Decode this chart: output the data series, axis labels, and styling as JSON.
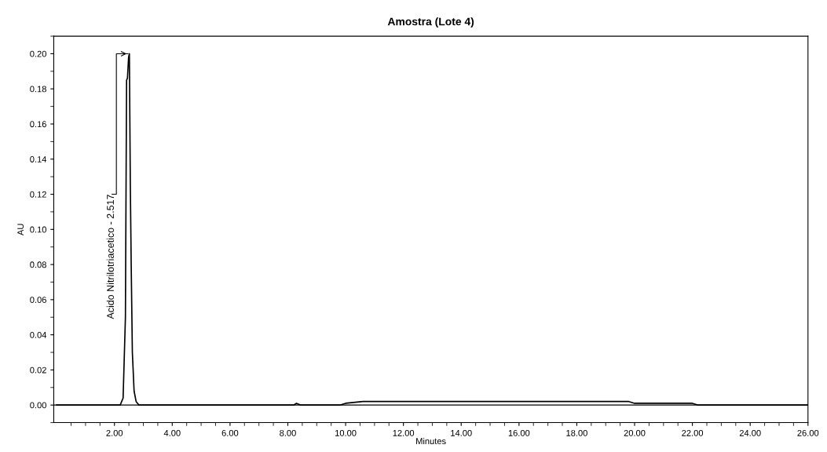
{
  "chart_data": {
    "type": "line",
    "title": "Amostra (Lote 4)",
    "xlabel": "Minutes",
    "ylabel": "AU",
    "x": [
      0,
      2.2,
      2.3,
      2.38,
      2.42,
      2.45,
      2.49,
      2.517,
      2.55,
      2.58,
      2.62,
      2.68,
      2.75,
      2.85,
      8.2,
      8.3,
      8.45,
      9.8,
      10.0,
      10.6,
      19.8,
      20.0,
      22.0,
      22.2,
      26
    ],
    "series": [
      {
        "color": "#000000",
        "values": [
          0,
          0,
          0.004,
          0.05,
          0.185,
          0.186,
          0.198,
          0.2,
          0.125,
          0.08,
          0.03,
          0.008,
          0.002,
          0,
          0,
          0.001,
          0,
          0,
          0.001,
          0.002,
          0.002,
          0.001,
          0.001,
          0,
          0
        ]
      }
    ],
    "annotations": [
      {
        "text": "Acido Nitrilotriacetico - 2.517",
        "x": 2.517,
        "y": 0.2
      }
    ],
    "xlim": [
      -0.1,
      26
    ],
    "ylim": [
      -0.01,
      0.21
    ],
    "xticks": [
      {
        "value": 0.5,
        "label": null
      },
      {
        "value": 1,
        "label": null
      },
      {
        "value": 1.5,
        "label": null
      },
      {
        "value": 2,
        "label": "2.00"
      },
      {
        "value": 2.5,
        "label": null
      },
      {
        "value": 3,
        "label": null
      },
      {
        "value": 3.5,
        "label": null
      },
      {
        "value": 4,
        "label": "4.00"
      },
      {
        "value": 4.5,
        "label": null
      },
      {
        "value": 5,
        "label": null
      },
      {
        "value": 5.5,
        "label": null
      },
      {
        "value": 6,
        "label": "6.00"
      },
      {
        "value": 6.5,
        "label": null
      },
      {
        "value": 7,
        "label": null
      },
      {
        "value": 7.5,
        "label": null
      },
      {
        "value": 8,
        "label": "8.00"
      },
      {
        "value": 8.5,
        "label": null
      },
      {
        "value": 9,
        "label": null
      },
      {
        "value": 9.5,
        "label": null
      },
      {
        "value": 10,
        "label": "10.00"
      },
      {
        "value": 10.5,
        "label": null
      },
      {
        "value": 11,
        "label": null
      },
      {
        "value": 11.5,
        "label": null
      },
      {
        "value": 12,
        "label": "12.00"
      },
      {
        "value": 12.5,
        "label": null
      },
      {
        "value": 13,
        "label": null
      },
      {
        "value": 13.5,
        "label": null
      },
      {
        "value": 14,
        "label": "14.00"
      },
      {
        "value": 14.5,
        "label": null
      },
      {
        "value": 15,
        "label": null
      },
      {
        "value": 15.5,
        "label": null
      },
      {
        "value": 16,
        "label": "16.00"
      },
      {
        "value": 16.5,
        "label": null
      },
      {
        "value": 17,
        "label": null
      },
      {
        "value": 17.5,
        "label": null
      },
      {
        "value": 18,
        "label": "18.00"
      },
      {
        "value": 18.5,
        "label": null
      },
      {
        "value": 19,
        "label": null
      },
      {
        "value": 19.5,
        "label": null
      },
      {
        "value": 20,
        "label": "20.00"
      },
      {
        "value": 20.5,
        "label": null
      },
      {
        "value": 21,
        "label": null
      },
      {
        "value": 21.5,
        "label": null
      },
      {
        "value": 22,
        "label": "22.00"
      },
      {
        "value": 22.5,
        "label": null
      },
      {
        "value": 23,
        "label": null
      },
      {
        "value": 23.5,
        "label": null
      },
      {
        "value": 24,
        "label": "24.00"
      },
      {
        "value": 24.5,
        "label": null
      },
      {
        "value": 25,
        "label": null
      },
      {
        "value": 25.5,
        "label": null
      },
      {
        "value": 26,
        "label": "26.00"
      }
    ],
    "yticks": [
      {
        "value": -0.01,
        "label": null
      },
      {
        "value": 0,
        "label": "0.00"
      },
      {
        "value": 0.01,
        "label": null
      },
      {
        "value": 0.02,
        "label": "0.02"
      },
      {
        "value": 0.03,
        "label": null
      },
      {
        "value": 0.04,
        "label": "0.04"
      },
      {
        "value": 0.05,
        "label": null
      },
      {
        "value": 0.06,
        "label": "0.06"
      },
      {
        "value": 0.07,
        "label": null
      },
      {
        "value": 0.08,
        "label": "0.08"
      },
      {
        "value": 0.09,
        "label": null
      },
      {
        "value": 0.1,
        "label": "0.10"
      },
      {
        "value": 0.11,
        "label": null
      },
      {
        "value": 0.12,
        "label": "0.12"
      },
      {
        "value": 0.13,
        "label": null
      },
      {
        "value": 0.14,
        "label": "0.14"
      },
      {
        "value": 0.15,
        "label": null
      },
      {
        "value": 0.16,
        "label": "0.16"
      },
      {
        "value": 0.17,
        "label": null
      },
      {
        "value": 0.18,
        "label": "0.18"
      },
      {
        "value": 0.19,
        "label": null
      },
      {
        "value": 0.2,
        "label": "0.20"
      },
      {
        "value": 0.21,
        "label": null
      }
    ],
    "ref_lines": [
      {
        "axis": "y",
        "value": 0,
        "color": "#000000"
      }
    ],
    "grid": false,
    "legend": false
  }
}
